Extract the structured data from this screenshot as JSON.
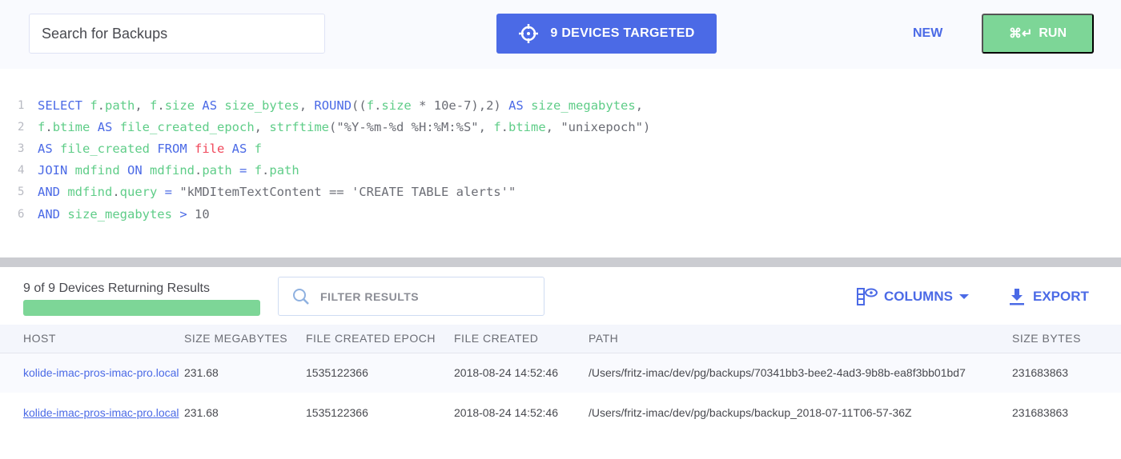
{
  "header": {
    "search_value": "Search for Backups",
    "targets_label": "9 DEVICES TARGETED",
    "new_label": "NEW",
    "run_shortcut": "⌘↵",
    "run_label": "RUN"
  },
  "editor": {
    "lines": [
      [
        [
          "SELECT ",
          "k"
        ],
        [
          "f",
          "g"
        ],
        [
          ".",
          "p"
        ],
        [
          "path",
          "g"
        ],
        [
          ", ",
          "p"
        ],
        [
          "f",
          "g"
        ],
        [
          ".",
          "p"
        ],
        [
          "size ",
          "g"
        ],
        [
          "AS ",
          "k"
        ],
        [
          "size_bytes",
          "g"
        ],
        [
          ", ",
          "p"
        ],
        [
          "ROUND",
          "k"
        ],
        [
          "((",
          "p"
        ],
        [
          "f",
          "g"
        ],
        [
          ".",
          "p"
        ],
        [
          "size ",
          "g"
        ],
        [
          "* 10e-7),2) ",
          "p"
        ],
        [
          "AS ",
          "k"
        ],
        [
          "size_megabytes",
          "g"
        ],
        [
          ",",
          "p"
        ]
      ],
      [
        [
          "f",
          "g"
        ],
        [
          ".",
          "p"
        ],
        [
          "btime ",
          "g"
        ],
        [
          "AS ",
          "k"
        ],
        [
          "file_created_epoch",
          "g"
        ],
        [
          ", ",
          "p"
        ],
        [
          "strftime",
          "g"
        ],
        [
          "(\"%Y-%m-%d %H:%M:%S\", ",
          "p"
        ],
        [
          "f",
          "g"
        ],
        [
          ".",
          "p"
        ],
        [
          "btime",
          "g"
        ],
        [
          ", \"unixepoch\")",
          "p"
        ]
      ],
      [
        [
          "AS ",
          "k"
        ],
        [
          "file_created ",
          "g"
        ],
        [
          "FROM ",
          "k"
        ],
        [
          "file ",
          "r"
        ],
        [
          "AS ",
          "k"
        ],
        [
          "f",
          "g"
        ]
      ],
      [
        [
          "JOIN ",
          "k"
        ],
        [
          "mdfind ",
          "g"
        ],
        [
          "ON ",
          "k"
        ],
        [
          "mdfind",
          "g"
        ],
        [
          ".",
          "p"
        ],
        [
          "path ",
          "g"
        ],
        [
          "= ",
          "k"
        ],
        [
          "f",
          "g"
        ],
        [
          ".",
          "p"
        ],
        [
          "path",
          "g"
        ]
      ],
      [
        [
          "AND ",
          "k"
        ],
        [
          "mdfind",
          "g"
        ],
        [
          ".",
          "p"
        ],
        [
          "query ",
          "g"
        ],
        [
          "= ",
          "k"
        ],
        [
          "\"kMDItemTextContent == 'CREATE TABLE alerts'\"",
          "p"
        ]
      ],
      [
        [
          "AND ",
          "k"
        ],
        [
          "size_megabytes ",
          "g"
        ],
        [
          "> ",
          "k"
        ],
        [
          "10",
          "p"
        ]
      ]
    ]
  },
  "results": {
    "devices_text": "9 of 9 Devices Returning Results",
    "progress_percent": 100,
    "filter_placeholder": "FILTER RESULTS",
    "columns_label": "COLUMNS",
    "export_label": "EXPORT",
    "headers": [
      "HOST",
      "SIZE MEGABYTES",
      "FILE CREATED EPOCH",
      "FILE CREATED",
      "PATH",
      "SIZE BYTES"
    ],
    "rows": [
      [
        "kolide-imac-pros-imac-pro.local",
        "231.68",
        "1535122366",
        "2018-08-24 14:52:46",
        "/Users/fritz-imac/dev/pg/backups/70341bb3-bee2-4ad3-9b8b-ea8f3bb01bd7",
        "231683863"
      ],
      [
        "kolide-imac-pros-imac-pro.local",
        "231.68",
        "1535122366",
        "2018-08-24 14:52:46",
        "/Users/fritz-imac/dev/pg/backups/backup_2018-07-11T06-57-36Z",
        "231683863"
      ]
    ]
  },
  "colors": {
    "accent": "#4b6ae6",
    "success": "#7dd697",
    "keyword": "#4b6ae6",
    "identifier": "#5fcd88",
    "table_name": "#f0485b"
  }
}
